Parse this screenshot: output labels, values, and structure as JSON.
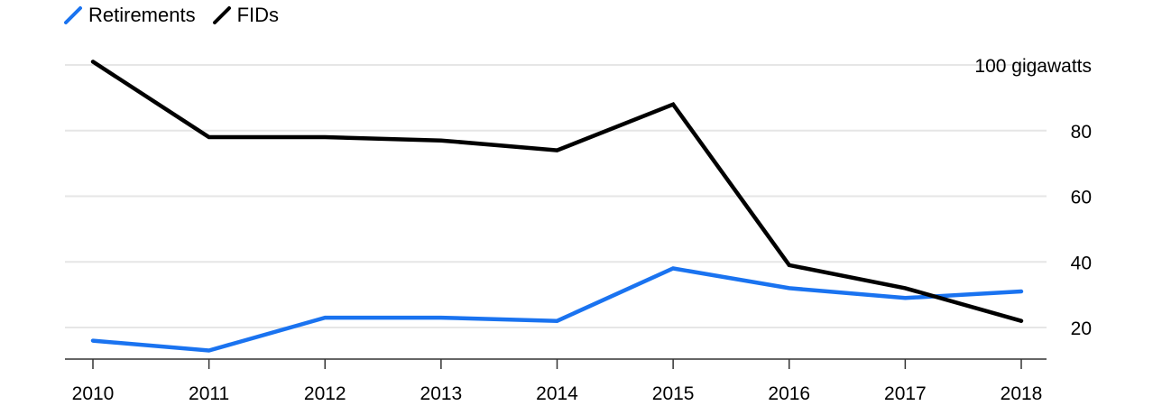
{
  "chart_data": {
    "type": "line",
    "title": "",
    "xlabel": "",
    "ylabel": "",
    "unit_label": "100 gigawatts",
    "categories": [
      "2010",
      "2011",
      "2012",
      "2013",
      "2014",
      "2015",
      "2016",
      "2017",
      "2018"
    ],
    "series": [
      {
        "name": "Retirements",
        "color": "#1a73f0",
        "values": [
          16,
          13,
          23,
          23,
          22,
          38,
          32,
          29,
          31
        ]
      },
      {
        "name": "FIDs",
        "color": "#000000",
        "values": [
          101,
          78,
          78,
          77,
          74,
          88,
          39,
          32,
          22
        ]
      }
    ],
    "ylim": [
      10,
      100
    ],
    "y_ticks": [
      20,
      40,
      60,
      80,
      100
    ],
    "y_tick_labels": [
      "20",
      "40",
      "60",
      "80",
      "100 gigawatts"
    ],
    "grid": true,
    "y_axis_side": "right",
    "legend_position": "top-left"
  }
}
